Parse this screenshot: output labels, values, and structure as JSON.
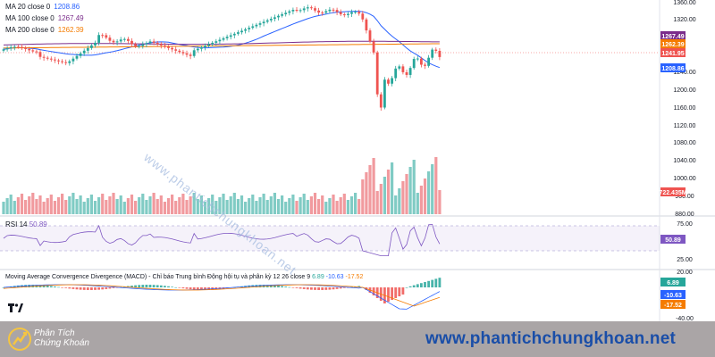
{
  "legends": {
    "ma20": {
      "label": "MA 20 close 0",
      "value": "1208.86",
      "color": "#2962ff"
    },
    "ma100": {
      "label": "MA 100 close 0",
      "value": "1267.49",
      "color": "#7b2d8b"
    },
    "ma200": {
      "label": "MA 200 close 0",
      "value": "1262.39",
      "color": "#f57c00"
    }
  },
  "price_axis": {
    "ticks": [
      "1360.00",
      "1320.00",
      "1240.00",
      "1200.00",
      "1160.00",
      "1120.00",
      "1080.00",
      "1040.00",
      "1000.00",
      "960.00",
      "880.00"
    ],
    "badges": [
      {
        "text": "1267.49",
        "color": "#7b2d8b"
      },
      {
        "text": "1262.39",
        "color": "#f57c00"
      },
      {
        "text": "1241.95",
        "color": "#ef5350"
      },
      {
        "text": "1208.86",
        "color": "#2962ff"
      },
      {
        "text": "722.435M",
        "color": "#ef5350"
      }
    ]
  },
  "rsi": {
    "label": "RSI",
    "period": "14",
    "value": "50.89",
    "ticks": [
      "75.00",
      "25.00"
    ],
    "badge": {
      "text": "50.89",
      "color": "#7e57c2"
    }
  },
  "macd": {
    "label": "Moving Average Convergence Divergence (MACD) - Chỉ báo Trung bình Động hội tụ và phân kỳ",
    "params": "12 26 close 9",
    "values": [
      {
        "text": "6.89",
        "color": "#26a69a"
      },
      {
        "text": "-10.63",
        "color": "#2962ff"
      },
      {
        "text": "-17.52",
        "color": "#f57c00"
      }
    ],
    "ticks": [
      "20.00",
      "-40.00"
    ],
    "badges": [
      {
        "text": "6.89",
        "color": "#26a69a"
      },
      {
        "text": "-10.63",
        "color": "#2962ff"
      },
      {
        "text": "-17.52",
        "color": "#f57c00"
      }
    ]
  },
  "watermark": "www.phantichchungkhoan.net",
  "footer": {
    "brand_line1": "Phân Tích",
    "brand_line2": "Chứng Khoán",
    "url": "www.phantichchungkhoan.net"
  },
  "icons": {
    "tradingview": "tradingview-logo-icon",
    "brand": "brand-logo-icon"
  },
  "colors": {
    "up": "#26a69a",
    "down": "#ef5350",
    "vol_up": "#80cbc4",
    "vol_down": "#f19a9e",
    "axis_text": "#131722"
  }
}
